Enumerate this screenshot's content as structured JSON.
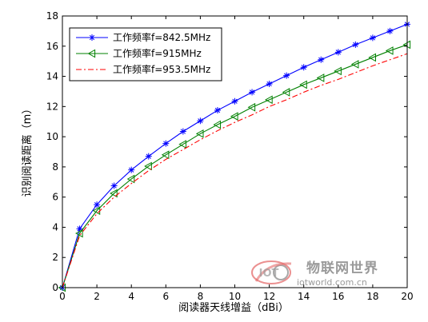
{
  "chart_data": {
    "type": "line",
    "title": "",
    "xlabel": "阅读器天线增益（dBi）",
    "ylabel": "识别阅读距离（m）",
    "xlim": [
      0,
      20
    ],
    "ylim": [
      0,
      18
    ],
    "x_ticks": [
      "0",
      "2",
      "4",
      "6",
      "8",
      "10",
      "12",
      "14",
      "16",
      "18",
      "20"
    ],
    "y_ticks": [
      "0",
      "2",
      "4",
      "6",
      "8",
      "10",
      "12",
      "14",
      "16",
      "18"
    ],
    "grid": false,
    "legend_position": "top-left",
    "x": [
      0,
      1,
      2,
      3,
      4,
      5,
      6,
      7,
      8,
      9,
      10,
      11,
      12,
      13,
      14,
      15,
      16,
      17,
      18,
      19,
      20
    ],
    "series": [
      {
        "name": "工作频率f=842.5MHz",
        "color": "#0000ff",
        "marker": "star",
        "line_style": "solid",
        "values": [
          0,
          3.9,
          5.5,
          6.75,
          7.8,
          8.7,
          9.55,
          10.35,
          11.05,
          11.75,
          12.35,
          12.95,
          13.5,
          14.05,
          14.6,
          15.1,
          15.6,
          16.1,
          16.55,
          17.0,
          17.45
        ]
      },
      {
        "name": "工作频率f=915MHz",
        "color": "#008000",
        "marker": "triangle-left",
        "line_style": "solid",
        "values": [
          0,
          3.6,
          5.1,
          6.25,
          7.2,
          8.05,
          8.8,
          9.5,
          10.2,
          10.8,
          11.35,
          11.95,
          12.45,
          12.95,
          13.45,
          13.9,
          14.35,
          14.8,
          15.25,
          15.7,
          16.1
        ]
      },
      {
        "name": "工作频率f=953.5MHz",
        "color": "#ff0000",
        "marker": "none",
        "line_style": "dashdot",
        "values": [
          0,
          3.45,
          4.9,
          6.0,
          6.9,
          7.75,
          8.5,
          9.15,
          9.8,
          10.4,
          10.95,
          11.45,
          12.0,
          12.45,
          12.95,
          13.4,
          13.8,
          14.25,
          14.7,
          15.1,
          15.5
        ]
      }
    ]
  },
  "watermark": {
    "cn_text": "物联网世界",
    "en_text": "iotworld.com.cn",
    "logo_text": "IOT",
    "color": "#9a9a9a",
    "accent": "#e46b6b"
  }
}
